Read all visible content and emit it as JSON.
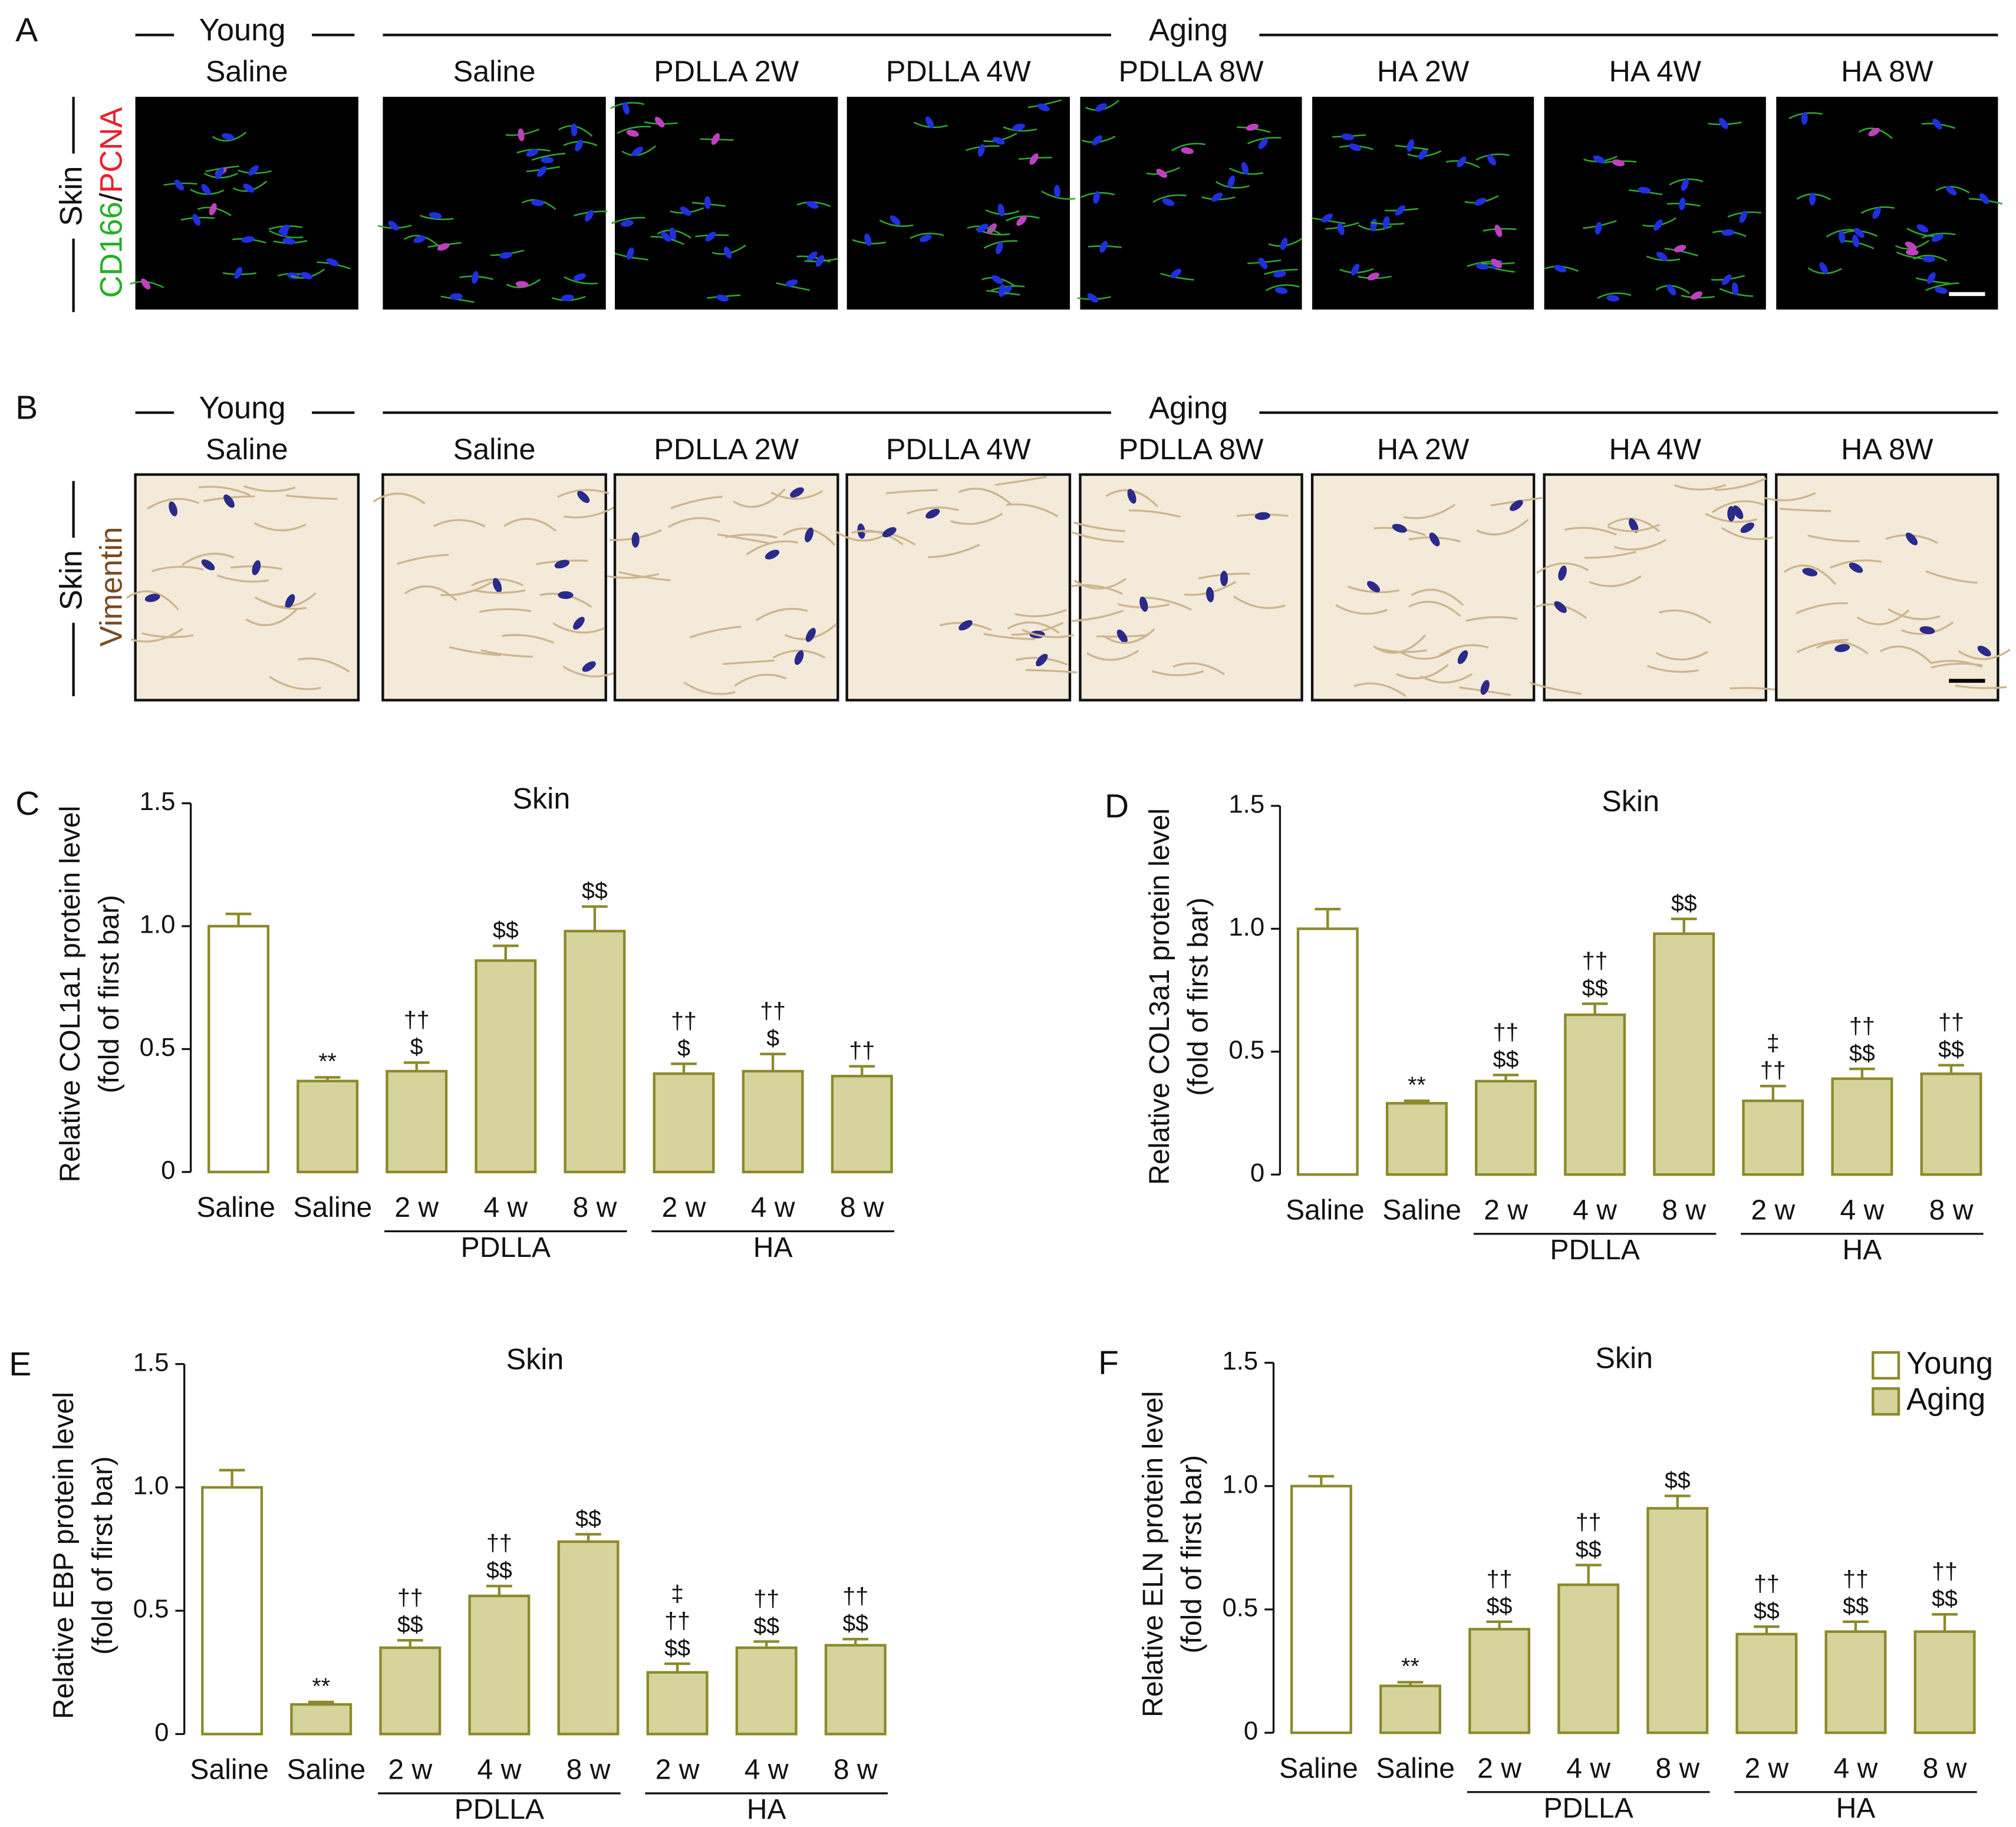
{
  "image_panels": [
    {
      "letter": "A",
      "young_label": "Young",
      "aging_label": "Aging",
      "columns": [
        "Saline",
        "Saline",
        "PDLLA 2W",
        "PDLLA 4W",
        "PDLLA 8W",
        "HA 2W",
        "HA 4W",
        "HA 8W"
      ],
      "tissue": "Skin",
      "stain": [
        "CD166",
        "/",
        "PCNA"
      ],
      "stain_colors": [
        "#22b022",
        "#111111",
        "#e8202a"
      ],
      "background": "#000000"
    },
    {
      "letter": "B",
      "young_label": "Young",
      "aging_label": "Aging",
      "columns": [
        "Saline",
        "Saline",
        "PDLLA 2W",
        "PDLLA 4W",
        "PDLLA 8W",
        "HA 2W",
        "HA 4W",
        "HA 8W"
      ],
      "tissue": "Skin",
      "stain": [
        "Vimentin"
      ],
      "stain_colors": [
        "#7a4a1e"
      ],
      "background": "#f3ead9"
    }
  ],
  "chart_data": [
    {
      "type": "bar",
      "letter": "C",
      "title": "Skin",
      "ylabel": [
        "Relative COL1a1 protein level",
        "(fold of first bar)"
      ],
      "categories": [
        "Saline",
        "Saline",
        "2 w",
        "4 w",
        "8 w",
        "2 w",
        "4 w",
        "8 w"
      ],
      "groups": [
        "PDLLA",
        "HA"
      ],
      "values": [
        1.0,
        0.37,
        0.41,
        0.86,
        0.98,
        0.4,
        0.41,
        0.39
      ],
      "errors": [
        0.05,
        0.015,
        0.035,
        0.06,
        0.1,
        0.04,
        0.07,
        0.04
      ],
      "annotations": [
        null,
        [
          "**"
        ],
        [
          "††",
          "$"
        ],
        [
          "$$"
        ],
        [
          "$$"
        ],
        [
          "††",
          "$"
        ],
        [
          "††",
          "$"
        ],
        [
          "††"
        ]
      ],
      "fills": [
        "#ffffff",
        "#d6d39c",
        "#d6d39c",
        "#d6d39c",
        "#d6d39c",
        "#d6d39c",
        "#d6d39c",
        "#d6d39c"
      ],
      "edge_color": "#8b8a2a",
      "ylim": [
        0,
        1.5
      ],
      "yticks": [
        0,
        0.5,
        {
          "value": 1,
          "label": "1.0"
        },
        1.5
      ]
    },
    {
      "type": "bar",
      "letter": "D",
      "title": "Skin",
      "ylabel": [
        "Relative COL3a1 protein level",
        "(fold of first bar)"
      ],
      "categories": [
        "Saline",
        "Saline",
        "2 w",
        "4 w",
        "8 w",
        "2 w",
        "4 w",
        "8 w"
      ],
      "groups": [
        "PDLLA",
        "HA"
      ],
      "values": [
        1.0,
        0.29,
        0.38,
        0.65,
        0.98,
        0.3,
        0.39,
        0.41
      ],
      "errors": [
        0.08,
        0.01,
        0.025,
        0.045,
        0.06,
        0.06,
        0.04,
        0.035
      ],
      "annotations": [
        null,
        [
          "**"
        ],
        [
          "††",
          "$$"
        ],
        [
          "††",
          "$$"
        ],
        [
          "$$"
        ],
        [
          "‡",
          "††"
        ],
        [
          "††",
          "$$"
        ],
        [
          "††",
          "$$"
        ]
      ],
      "fills": [
        "#ffffff",
        "#d6d39c",
        "#d6d39c",
        "#d6d39c",
        "#d6d39c",
        "#d6d39c",
        "#d6d39c",
        "#d6d39c"
      ],
      "edge_color": "#8b8a2a",
      "ylim": [
        0,
        1.5
      ],
      "yticks": [
        0,
        0.5,
        {
          "value": 1,
          "label": "1.0"
        },
        1.5
      ]
    },
    {
      "type": "bar",
      "letter": "E",
      "title": "Skin",
      "ylabel": [
        "Relative EBP protein level",
        "(fold of first bar)"
      ],
      "categories": [
        "Saline",
        "Saline",
        "2 w",
        "4 w",
        "8 w",
        "2 w",
        "4 w",
        "8 w"
      ],
      "groups": [
        "PDLLA",
        "HA"
      ],
      "values": [
        1.0,
        0.12,
        0.35,
        0.56,
        0.78,
        0.25,
        0.35,
        0.36
      ],
      "errors": [
        0.07,
        0.01,
        0.03,
        0.04,
        0.03,
        0.035,
        0.025,
        0.025
      ],
      "annotations": [
        null,
        [
          "**"
        ],
        [
          "††",
          "$$"
        ],
        [
          "††",
          "$$"
        ],
        [
          "$$"
        ],
        [
          "‡",
          "††",
          "$$"
        ],
        [
          "††",
          "$$"
        ],
        [
          "††",
          "$$"
        ]
      ],
      "fills": [
        "#ffffff",
        "#d6d39c",
        "#d6d39c",
        "#d6d39c",
        "#d6d39c",
        "#d6d39c",
        "#d6d39c",
        "#d6d39c"
      ],
      "edge_color": "#8b8a2a",
      "ylim": [
        0,
        1.5
      ],
      "yticks": [
        0,
        0.5,
        {
          "value": 1,
          "label": "1.0"
        },
        1.5
      ]
    },
    {
      "type": "bar",
      "letter": "F",
      "title": "Skin",
      "ylabel": [
        "Relative ELN protein level",
        "(fold of first bar)"
      ],
      "categories": [
        "Saline",
        "Saline",
        "2 w",
        "4 w",
        "8 w",
        "2 w",
        "4 w",
        "8 w"
      ],
      "groups": [
        "PDLLA",
        "HA"
      ],
      "values": [
        1.0,
        0.19,
        0.42,
        0.6,
        0.91,
        0.4,
        0.41,
        0.41
      ],
      "errors": [
        0.04,
        0.015,
        0.03,
        0.08,
        0.05,
        0.03,
        0.04,
        0.07
      ],
      "annotations": [
        null,
        [
          "**"
        ],
        [
          "††",
          "$$"
        ],
        [
          "††",
          "$$"
        ],
        [
          "$$"
        ],
        [
          "††",
          "$$"
        ],
        [
          "††",
          "$$"
        ],
        [
          "††",
          "$$"
        ]
      ],
      "fills": [
        "#ffffff",
        "#d6d39c",
        "#d6d39c",
        "#d6d39c",
        "#d6d39c",
        "#d6d39c",
        "#d6d39c",
        "#d6d39c"
      ],
      "edge_color": "#8b8a2a",
      "ylim": [
        0,
        1.5
      ],
      "yticks": [
        0,
        0.5,
        {
          "value": 1,
          "label": "1.0"
        },
        1.5
      ],
      "legend": {
        "position": "upper right",
        "entries": [
          {
            "name": "Young",
            "color": "#ffffff"
          },
          {
            "name": "Aging",
            "color": "#d6d39c"
          }
        ]
      }
    }
  ]
}
